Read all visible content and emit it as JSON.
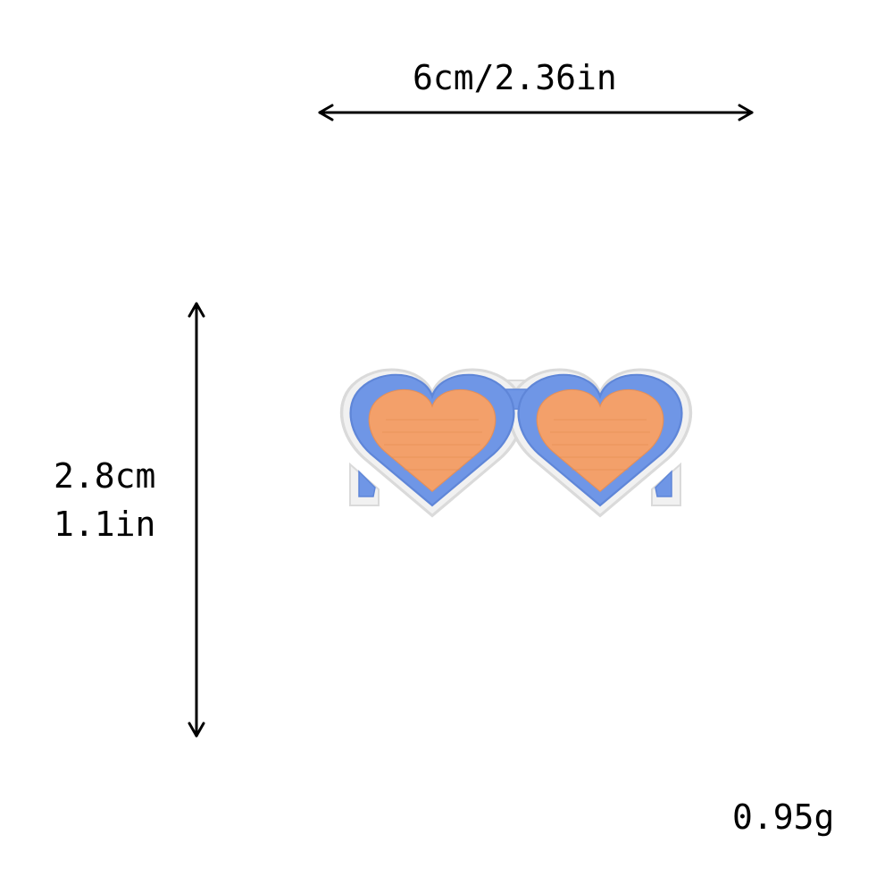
{
  "dimensions": {
    "width_label": "6cm/2.36in",
    "height_label_cm": "2.8cm",
    "height_label_in": "1.1in",
    "weight_label": "0.95g"
  },
  "product": {
    "icon": "heart-sunglasses-patch-icon",
    "colors": {
      "frame": "#6f96e6",
      "lens": "#f3a06a",
      "border": "#f1f1f1",
      "border_shadow": "#d9d9d9",
      "arrow": "#000000"
    }
  }
}
